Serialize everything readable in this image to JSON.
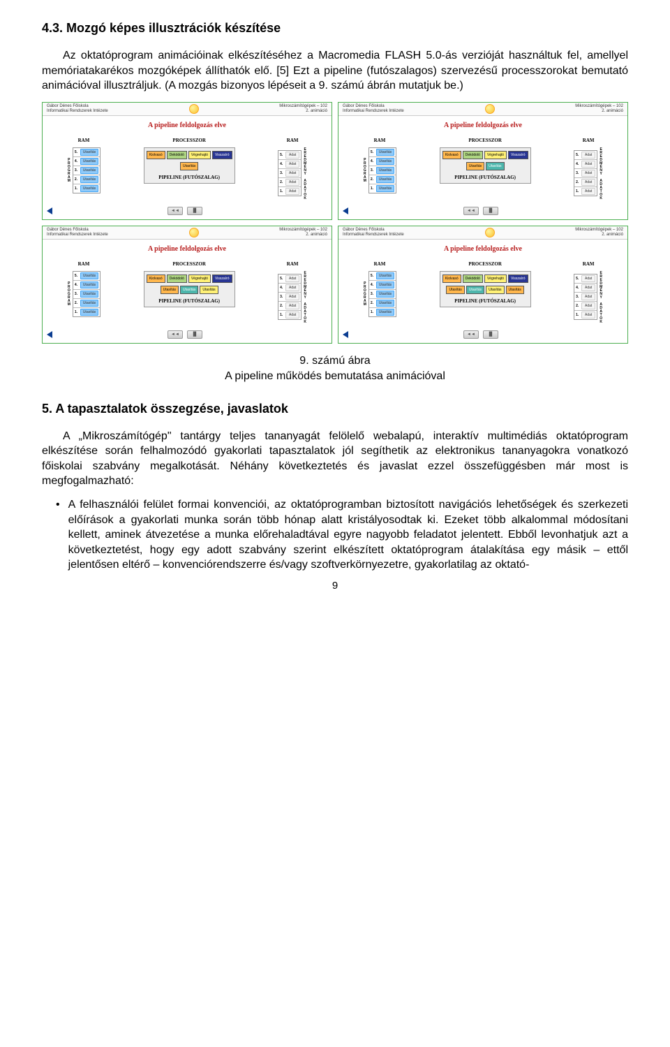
{
  "section43": {
    "heading": "4.3. Mozgó képes illusztrációk készítése",
    "p1": "Az oktatóprogram animációinak elkészítéséhez a Macromedia FLASH 5.0-ás verzióját használtuk fel, amellyel memóriatakarékos mozgóképek állíthatók elő. [5] Ezt a pipeline (futószalagos) szervezésű processzorokat bemutató animációval illusztráljuk. (A mozgás bizonyos lépéseit a 9. számú ábrán mutatjuk be.)"
  },
  "figure": {
    "caption_line1": "9. számú ábra",
    "caption_line2": "A pipeline működés bemutatása animációval",
    "panel": {
      "head_left_l1": "Gábor Dénes Főiskola",
      "head_left_l2": "Informatikai Rendszerek Intézete",
      "head_right_l1": "Mikroszámítógépek – 102",
      "head_right_l2": "2. animáció",
      "title": "A pipeline feldolgozás elve",
      "ram_label": "RAM",
      "proc_label": "PROCESSZOR",
      "program_side": "PROGRAM",
      "eredmeny_side": "EREDMÉNY ADATOK",
      "proc_caption": "PIPELINE (FUTÓSZALAG)",
      "stages": [
        "Kiolvasó",
        "Dekódoló",
        "Végrehajtó",
        "Visszaíró"
      ],
      "left_items": [
        "Utasítás",
        "Utasítás",
        "Utasítás",
        "Utasítás",
        "Utasítás"
      ],
      "right_items": [
        "Adat",
        "Adat",
        "Adat",
        "Adat",
        "Adat"
      ],
      "nums": [
        "5.",
        "4.",
        "3.",
        "2.",
        "1."
      ],
      "btn_prev": "◄◄",
      "btn_next": "▐▌",
      "variants": [
        {
          "below": [
            "Utasítás"
          ],
          "below_colors": [
            "pc-orange"
          ]
        },
        {
          "below": [
            "Utasítás",
            "Utasítás"
          ],
          "below_colors": [
            "pc-orange",
            "pc-blue"
          ]
        },
        {
          "below": [
            "Utasítás",
            "Utasítás",
            "Utasítás"
          ],
          "below_colors": [
            "pc-orange",
            "pc-blue",
            "pc-yellow"
          ]
        },
        {
          "below": [
            "Utasítás",
            "Utasítás",
            "Utasítás",
            "Utasítás"
          ],
          "below_colors": [
            "pc-orange",
            "pc-blue",
            "pc-yellow",
            "pc-orange"
          ]
        }
      ]
    }
  },
  "section5": {
    "heading": "5. A tapasztalatok összegzése, javaslatok",
    "p1": "A „Mikroszámítógép\" tantárgy teljes tananyagát felölelő webalapú, interaktív multimédiás oktatóprogram elkészítése során felhalmozódó gyakorlati tapasztalatok jól segíthetik az elektronikus tananyagokra vonatkozó főiskolai szabvány megalkotását. Néhány következtetés és javaslat ezzel összefüggésben már most is megfogalmazható:",
    "bullet1": "A felhasználói felület formai konvenciói, az oktatóprogramban biztosított navigációs lehetőségek és szerkezeti előírások a gyakorlati munka során több hónap alatt kristályosodtak ki. Ezeket több alkalommal módosítani kellett, aminek átvezetése a munka előrehaladtával egyre nagyobb feladatot jelentett. Ebből levonhatjuk azt a következtetést, hogy egy adott szabvány szerint elkészített oktatóprogram átalakítása egy másik – ettől jelentősen eltérő – konvenciórendszerre és/vagy szoftverkörnyezetre, gyakorlatilag az oktató-"
  },
  "page_number": "9"
}
